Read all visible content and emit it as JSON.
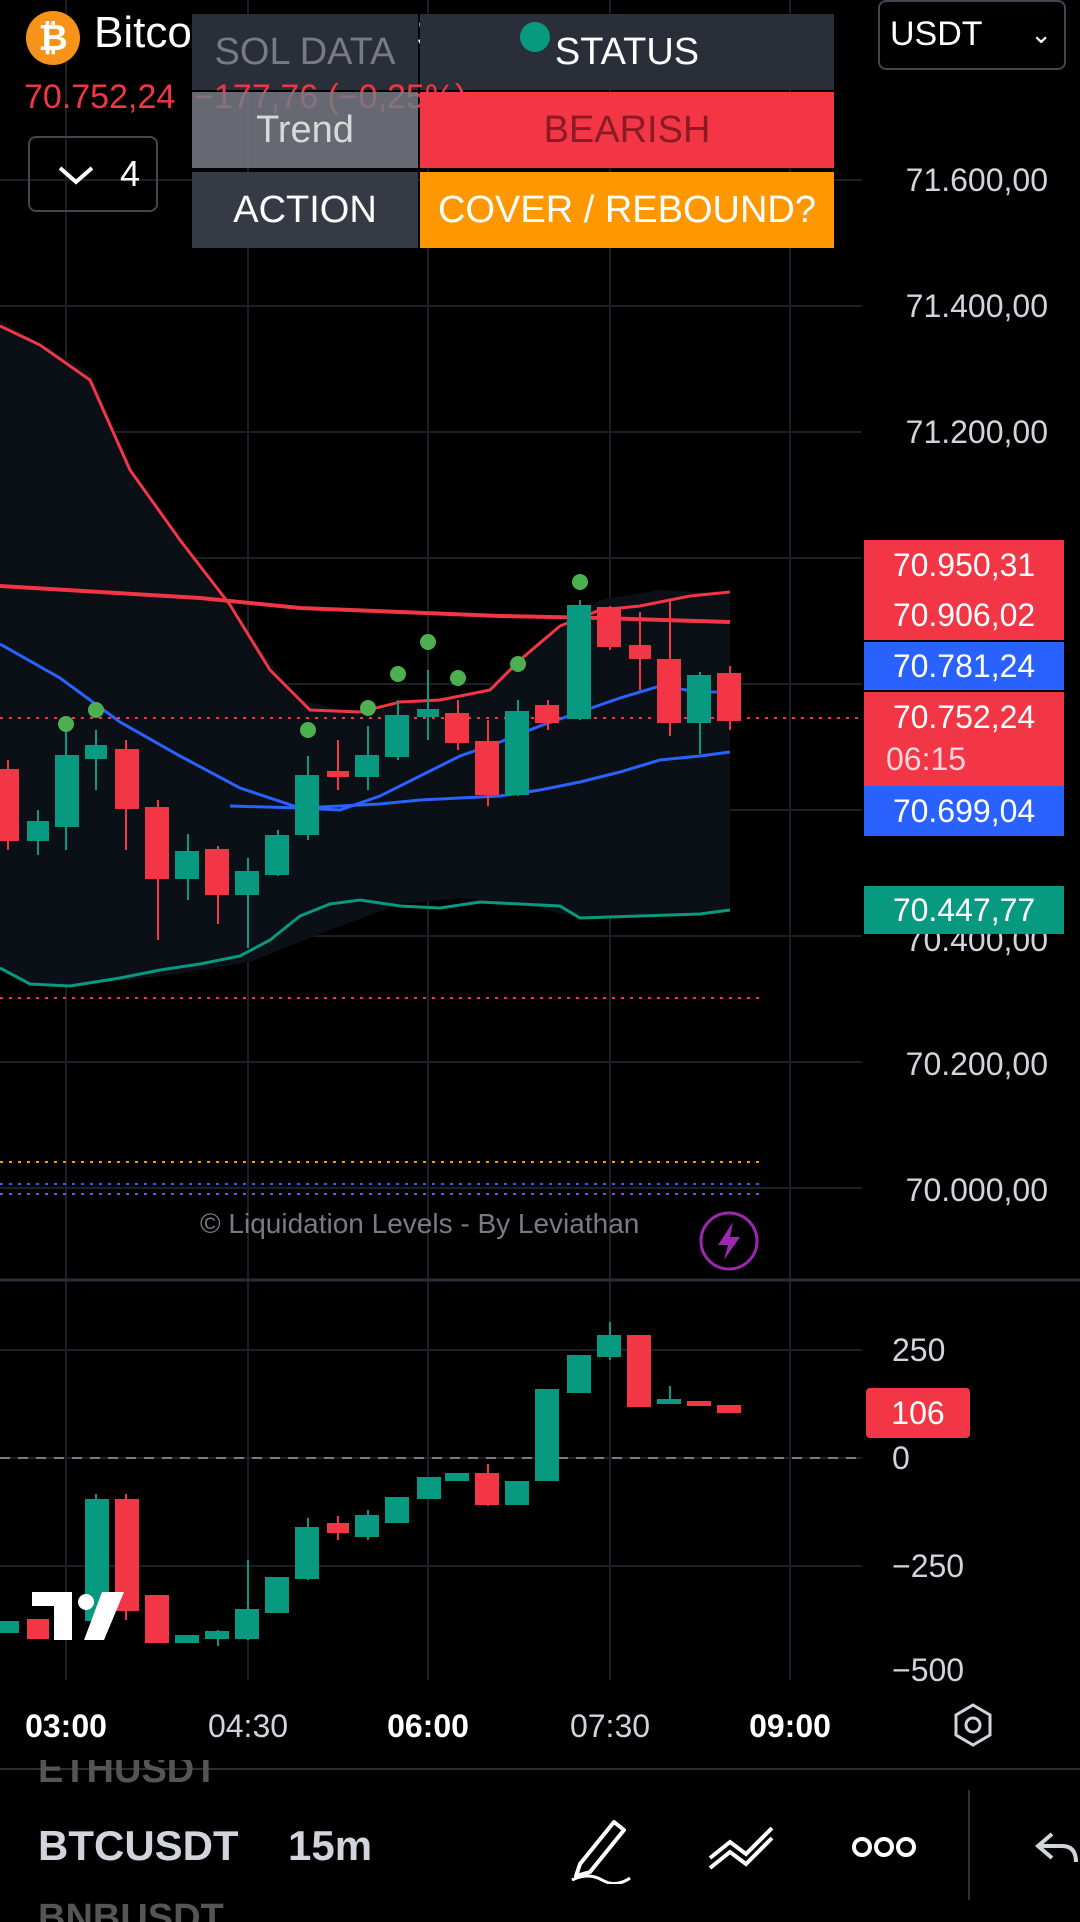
{
  "header": {
    "symbol_title": "Bitcoin / TetherUS",
    "last_price": "70.752,24",
    "change": "−177,76 (−0,25%)",
    "currency": "USDT",
    "indicator_count": "4"
  },
  "status_table": {
    "header_left": "SOL DATA",
    "header_right": "STATUS",
    "row1_label": "Trend",
    "row1_value": "BEARISH",
    "row2_label": "ACTION",
    "row2_value": "COVER / REBOUND?",
    "colors": {
      "bearish": "#f23645",
      "action": "#ff9800",
      "label_bg": "#363a45"
    }
  },
  "price_axis": [
    "71.600,00",
    "71.400,00",
    "71.200,00",
    "70.400,00",
    "70.200,00",
    "70.000,00"
  ],
  "price_tags": [
    {
      "value": "70.950,31",
      "color": "#f23645"
    },
    {
      "value": "70.906,02",
      "color": "#f23645"
    },
    {
      "value": "70.781,24",
      "color": "#2962ff"
    },
    {
      "value": "70.752,24",
      "color": "#f23645",
      "sub": "06:15"
    },
    {
      "value": "70.699,04",
      "color": "#2962ff"
    },
    {
      "value": "70.447,77",
      "color": "#089981"
    }
  ],
  "watermark": "© Liquidation Levels - By Leviathan",
  "osc_axis": [
    "250",
    "0",
    "−250",
    "−500"
  ],
  "osc_tag": "106",
  "time_axis": [
    "03:00",
    "04:30",
    "06:00",
    "07:30",
    "09:00"
  ],
  "bottom": {
    "symbol": "BTCUSDT",
    "interval": "15m",
    "ghost_above": "ETHUSDT",
    "ghost_below": "BNBUSDT"
  },
  "icons": [
    "bitcoin-logo",
    "chevron-down-icon",
    "lightning-icon",
    "tradingview-logo",
    "settings-hex-icon",
    "pencil-icon",
    "drawing-tools-icon",
    "more-icon",
    "undo-icon"
  ]
}
